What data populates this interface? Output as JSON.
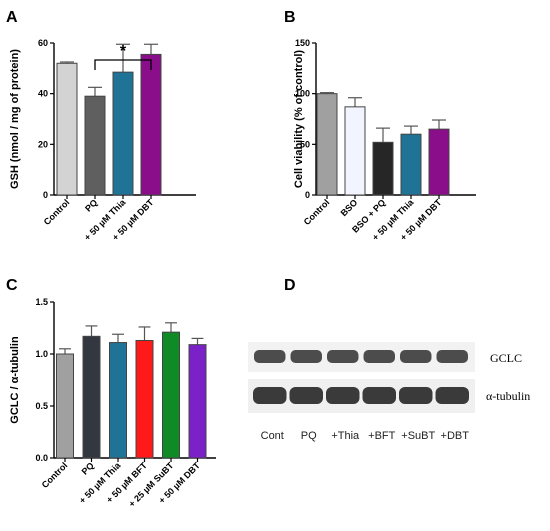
{
  "panels": {
    "A": "A",
    "B": "B",
    "C": "C",
    "D": "D"
  },
  "chart_data": [
    {
      "panel": "A",
      "type": "bar",
      "ylabel": "GSH (nmol / mg of protein)",
      "ylim": [
        0,
        60
      ],
      "yticks": [
        0,
        20,
        40,
        60
      ],
      "categories": [
        "Control",
        "PQ",
        "+ 50 µM Thia",
        "+ 50 µM DBT"
      ],
      "values": [
        52,
        39,
        48.5,
        55.5
      ],
      "errors": [
        0.5,
        3.5,
        11,
        4
      ],
      "colors": [
        "#d3d3d3",
        "#5f5f5f",
        "#1e7397",
        "#8a0e8a"
      ],
      "annotations": [
        {
          "text": "*",
          "between": [
            "PQ",
            "+ 50 µM DBT"
          ]
        }
      ]
    },
    {
      "panel": "B",
      "type": "bar",
      "ylabel": "Cell viability (% of control)",
      "ylim": [
        0,
        150
      ],
      "yticks": [
        0,
        50,
        100,
        150
      ],
      "categories": [
        "Control",
        "BSO",
        "BSO + PQ",
        "+ 50 µM Thia",
        "+ 50 µM DBT"
      ],
      "values": [
        100,
        87,
        52,
        60,
        65
      ],
      "errors": [
        1,
        9,
        14,
        8,
        9
      ],
      "colors": [
        "#a0a0a0",
        "#f2f5ff",
        "#262626",
        "#1e7397",
        "#8a0e8a"
      ]
    },
    {
      "panel": "C",
      "type": "bar",
      "ylabel": "GCLC / α-tubulin",
      "ylim": [
        0,
        1.5
      ],
      "yticks": [
        "0.0",
        "0.5",
        "1.0",
        "1.5"
      ],
      "categories": [
        "Control",
        "PQ",
        "+ 50 µM Thia",
        "+ 50 µM BFT",
        "+ 25 µM SuBT",
        "+ 50 µM DBT"
      ],
      "values": [
        1.0,
        1.17,
        1.11,
        1.13,
        1.21,
        1.09
      ],
      "errors": [
        0.05,
        0.1,
        0.08,
        0.13,
        0.09,
        0.06
      ],
      "colors": [
        "#a0a0a0",
        "#333840",
        "#1e7397",
        "#ff1a1a",
        "#0f8a24",
        "#7a22c8"
      ]
    }
  ],
  "blot": {
    "bands": [
      "GCLC",
      "α-tubulin"
    ],
    "lanes": [
      "Cont",
      "PQ",
      "+Thia",
      "+BFT",
      "+SuBT",
      "+DBT"
    ]
  }
}
